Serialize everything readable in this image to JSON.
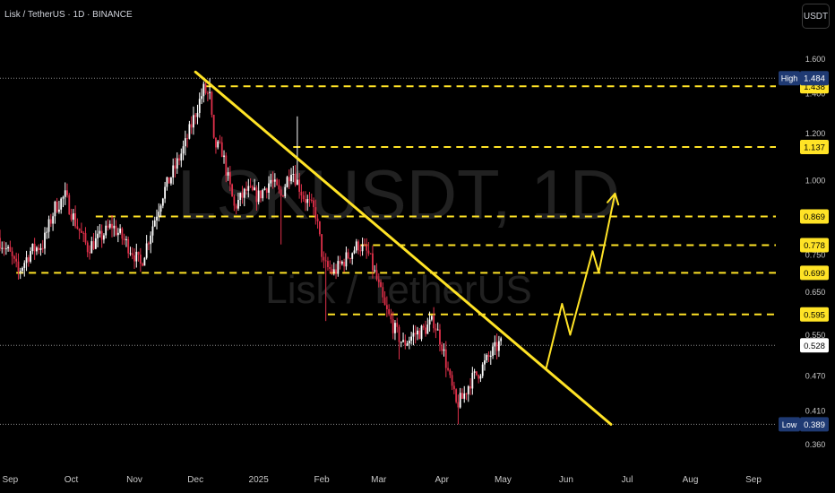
{
  "header": {
    "symbol_title": "Lisk / TetherUS · 1D · BINANCE",
    "currency": "USDT"
  },
  "watermark": {
    "ticker": "LSKUSDT, 1D",
    "name": "Lisk / TetherUS"
  },
  "colors": {
    "background": "#000000",
    "up": "#ffffff",
    "down": "#e0304a",
    "annotation": "#ffe326",
    "axis_text": "#c8c8c8",
    "high_low_badge": "#1f3a73"
  },
  "chart_data": {
    "type": "candlestick",
    "y_scale": "log",
    "ylim": [
      0.345,
      1.7
    ],
    "x_range": [
      "2024-08-27",
      "2025-09-12"
    ],
    "price_ticks": [
      "1.600",
      "1.400",
      "1.200",
      "1.000",
      "0.750",
      "0.650",
      "0.550",
      "0.470",
      "0.410",
      "0.360"
    ],
    "time_ticks": [
      {
        "label": "Sep",
        "date": "2024-09-01"
      },
      {
        "label": "Oct",
        "date": "2024-10-01"
      },
      {
        "label": "Nov",
        "date": "2024-11-01"
      },
      {
        "label": "Dec",
        "date": "2024-12-01"
      },
      {
        "label": "2025",
        "date": "2025-01-01"
      },
      {
        "label": "Feb",
        "date": "2025-02-01"
      },
      {
        "label": "Mar",
        "date": "2025-03-01"
      },
      {
        "label": "Apr",
        "date": "2025-04-01"
      },
      {
        "label": "May",
        "date": "2025-05-01"
      },
      {
        "label": "Jun",
        "date": "2025-06-01"
      },
      {
        "label": "Jul",
        "date": "2025-07-01"
      },
      {
        "label": "Aug",
        "date": "2025-08-01"
      },
      {
        "label": "Sep",
        "date": "2025-09-01"
      }
    ],
    "price_path": [
      [
        "2024-08-27",
        0.8
      ],
      [
        "2024-09-02",
        0.75
      ],
      [
        "2024-09-06",
        0.7
      ],
      [
        "2024-09-12",
        0.76
      ],
      [
        "2024-09-18",
        0.78
      ],
      [
        "2024-09-24",
        0.9
      ],
      [
        "2024-09-29",
        0.94
      ],
      [
        "2024-10-04",
        0.85
      ],
      [
        "2024-10-10",
        0.77
      ],
      [
        "2024-10-16",
        0.8
      ],
      [
        "2024-10-22",
        0.84
      ],
      [
        "2024-10-27",
        0.8
      ],
      [
        "2024-11-01",
        0.76
      ],
      [
        "2024-11-05",
        0.72
      ],
      [
        "2024-11-10",
        0.82
      ],
      [
        "2024-11-16",
        0.95
      ],
      [
        "2024-11-22",
        1.05
      ],
      [
        "2024-11-27",
        1.15
      ],
      [
        "2024-12-02",
        1.3
      ],
      [
        "2024-12-06",
        1.42
      ],
      [
        "2024-12-09",
        1.38
      ],
      [
        "2024-12-11",
        1.15
      ],
      [
        "2024-12-15",
        1.12
      ],
      [
        "2024-12-21",
        0.9
      ],
      [
        "2024-12-27",
        0.96
      ],
      [
        "2025-01-02",
        0.94
      ],
      [
        "2025-01-08",
        1.0
      ],
      [
        "2025-01-13",
        0.94
      ],
      [
        "2025-01-18",
        1.05
      ],
      [
        "2025-01-24",
        0.94
      ],
      [
        "2025-01-30",
        0.88
      ],
      [
        "2025-02-03",
        0.72
      ],
      [
        "2025-02-08",
        0.7
      ],
      [
        "2025-02-14",
        0.74
      ],
      [
        "2025-02-20",
        0.78
      ],
      [
        "2025-02-25",
        0.75
      ],
      [
        "2025-03-01",
        0.68
      ],
      [
        "2025-03-05",
        0.61
      ],
      [
        "2025-03-10",
        0.56
      ],
      [
        "2025-03-14",
        0.53
      ],
      [
        "2025-03-19",
        0.55
      ],
      [
        "2025-03-24",
        0.56
      ],
      [
        "2025-03-29",
        0.58
      ],
      [
        "2025-04-02",
        0.53
      ],
      [
        "2025-04-06",
        0.46
      ],
      [
        "2025-04-09",
        0.42
      ],
      [
        "2025-04-12",
        0.43
      ],
      [
        "2025-04-16",
        0.46
      ],
      [
        "2025-04-21",
        0.48
      ],
      [
        "2025-04-26",
        0.51
      ],
      [
        "2025-04-30",
        0.53
      ]
    ],
    "wicks": [
      {
        "date": "2024-12-08",
        "high": 1.484
      },
      {
        "date": "2025-01-12",
        "low": 0.78
      },
      {
        "date": "2025-01-20",
        "high": 1.28
      },
      {
        "date": "2025-02-03",
        "low": 0.58
      },
      {
        "date": "2025-03-11",
        "low": 0.5
      },
      {
        "date": "2025-04-09",
        "low": 0.389
      }
    ],
    "high": {
      "label": "High",
      "value": "1.484"
    },
    "low": {
      "label": "Low",
      "value": "0.389"
    },
    "last_price": "0.528",
    "levels": [
      {
        "label": "1.438",
        "value": 1.438,
        "from": "2024-12-06"
      },
      {
        "label": "1.137",
        "value": 1.137,
        "from": "2025-01-18"
      },
      {
        "label": "0.869",
        "value": 0.869,
        "from": "2024-10-13"
      },
      {
        "label": "0.778",
        "value": 0.778,
        "from": "2025-02-20"
      },
      {
        "label": "0.699",
        "value": 0.699,
        "from": "2024-09-04"
      },
      {
        "label": "0.595",
        "value": 0.595,
        "from": "2025-02-04"
      }
    ],
    "trendline": [
      [
        "2024-12-01",
        1.52
      ],
      [
        "2025-06-23",
        0.389
      ]
    ],
    "projection": [
      [
        "2025-05-22",
        0.48
      ],
      [
        "2025-05-30",
        0.62
      ],
      [
        "2025-06-03",
        0.55
      ],
      [
        "2025-06-14",
        0.76
      ],
      [
        "2025-06-17",
        0.7
      ],
      [
        "2025-06-25",
        0.95
      ]
    ]
  }
}
